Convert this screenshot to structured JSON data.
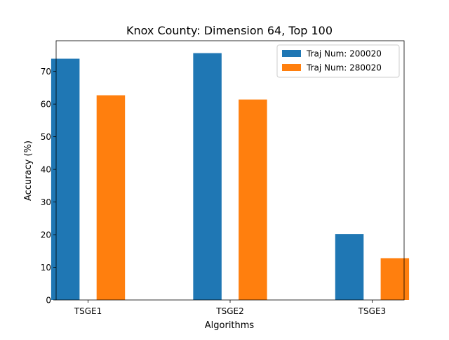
{
  "chart_data": {
    "type": "bar",
    "title": "Knox County: Dimension 64, Top 100",
    "xlabel": "Algorithms",
    "ylabel": "Accuracy (%)",
    "categories": [
      "TSGE1",
      "TSGE2",
      "TSGE3"
    ],
    "series": [
      {
        "name": "Traj Num: 200020",
        "color": "#1f77b4",
        "values": [
          73.9,
          75.6,
          20.2
        ]
      },
      {
        "name": "Traj Num: 280020",
        "color": "#ff7f0e",
        "values": [
          62.7,
          61.4,
          12.8
        ]
      }
    ],
    "ylim": [
      0,
      79.4
    ],
    "yticks": [
      0,
      10,
      20,
      30,
      40,
      50,
      60,
      70
    ],
    "grid": false,
    "legend_position": "top-right"
  }
}
